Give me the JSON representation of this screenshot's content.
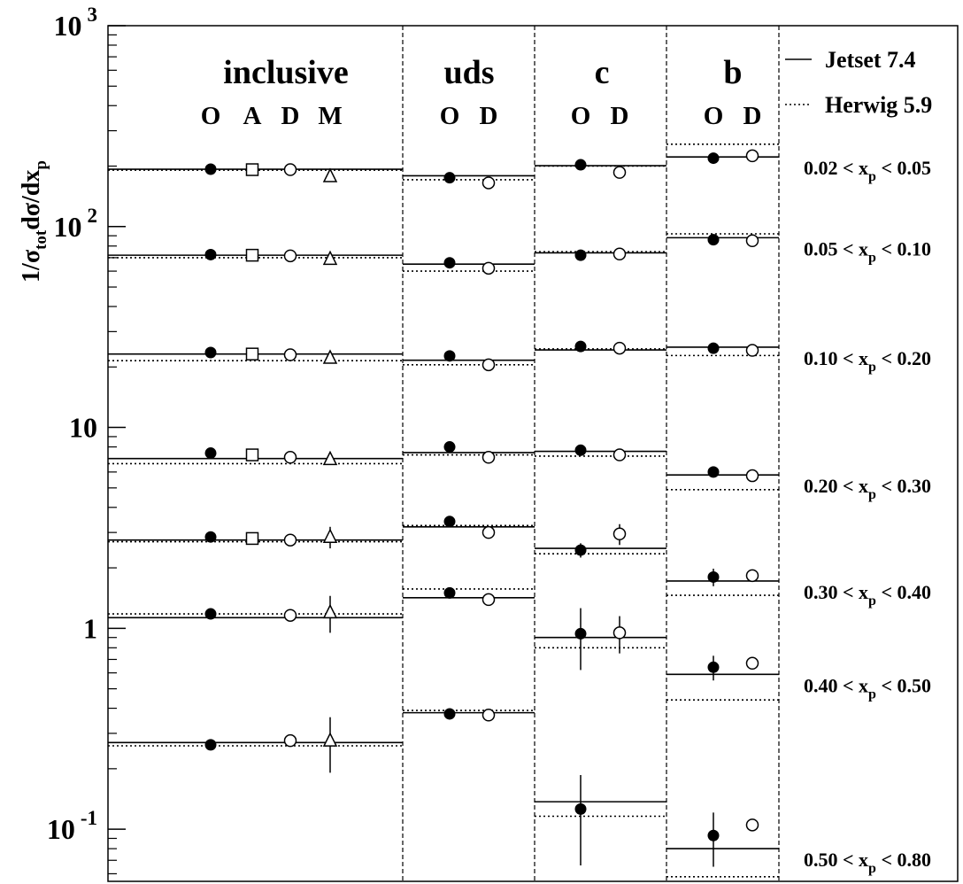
{
  "chart_data": {
    "type": "scatter",
    "yscale": "log",
    "ylim": [
      0.055,
      1000
    ],
    "y_axis": {
      "label_base": "1/σ",
      "label_sub1": "tot",
      "label_mid": "dσ/dx",
      "label_sub2": "p",
      "major_ticks": [
        {
          "value": 1000,
          "base": "10",
          "exp": "3"
        },
        {
          "value": 100,
          "base": "10",
          "exp": "2"
        },
        {
          "value": 10,
          "base": "10",
          "exp": ""
        },
        {
          "value": 1,
          "base": "1",
          "exp": ""
        },
        {
          "value": 0.1,
          "base": "10",
          "exp": "-1"
        }
      ]
    },
    "panels": [
      {
        "label": "inclusive",
        "experiments": [
          "O",
          "A",
          "D",
          "M"
        ]
      },
      {
        "label": "uds",
        "experiments": [
          "O",
          "D"
        ]
      },
      {
        "label": "c",
        "experiments": [
          "O",
          "D"
        ]
      },
      {
        "label": "b",
        "experiments": [
          "O",
          "D"
        ]
      }
    ],
    "legend": {
      "position": "top-right",
      "entries": [
        {
          "label": "Jetset 7.4",
          "style": "solid"
        },
        {
          "label": "Herwig 5.9",
          "style": "dotted"
        }
      ]
    },
    "bins": [
      {
        "label_pre": "0.02 < x",
        "label_sub": "p",
        "label_post": " < 0.05"
      },
      {
        "label_pre": "0.05 < x",
        "label_sub": "p",
        "label_post": " < 0.10"
      },
      {
        "label_pre": "0.10 < x",
        "label_sub": "p",
        "label_post": " < 0.20"
      },
      {
        "label_pre": "0.20 < x",
        "label_sub": "p",
        "label_post": " < 0.30"
      },
      {
        "label_pre": "0.30 < x",
        "label_sub": "p",
        "label_post": " < 0.40"
      },
      {
        "label_pre": "0.40 < x",
        "label_sub": "p",
        "label_post": " < 0.50"
      },
      {
        "label_pre": "0.50 < x",
        "label_sub": "p",
        "label_post": " < 0.80"
      }
    ],
    "jetset": [
      [
        193,
        179,
        201,
        222
      ],
      [
        72,
        65,
        74,
        88
      ],
      [
        23.2,
        21.6,
        24.3,
        25.1
      ],
      [
        7.0,
        7.5,
        7.6,
        5.8
      ],
      [
        2.75,
        3.2,
        2.5,
        1.72
      ],
      [
        1.13,
        1.42,
        0.9,
        0.59
      ],
      [
        0.27,
        0.38,
        0.137,
        0.08
      ]
    ],
    "herwig": [
      [
        191,
        171,
        200,
        257
      ],
      [
        70,
        60,
        75,
        92
      ],
      [
        21.5,
        20.5,
        24.6,
        22.8
      ],
      [
        6.6,
        7.3,
        7.2,
        4.9
      ],
      [
        2.7,
        3.25,
        2.35,
        1.46
      ],
      [
        1.18,
        1.57,
        0.8,
        0.44
      ],
      [
        0.26,
        0.39,
        0.116,
        0.058
      ]
    ],
    "points": [
      {
        "bin": 0,
        "panel": 0,
        "exp": "O",
        "value": 193,
        "err": 0
      },
      {
        "bin": 0,
        "panel": 0,
        "exp": "A",
        "value": 192,
        "err": 0
      },
      {
        "bin": 0,
        "panel": 0,
        "exp": "D",
        "value": 192,
        "err": 0
      },
      {
        "bin": 0,
        "panel": 0,
        "exp": "M",
        "value": 178,
        "err": 0
      },
      {
        "bin": 0,
        "panel": 1,
        "exp": "O",
        "value": 175,
        "err": 0
      },
      {
        "bin": 0,
        "panel": 1,
        "exp": "D",
        "value": 165,
        "err": 0
      },
      {
        "bin": 0,
        "panel": 2,
        "exp": "O",
        "value": 203,
        "err": 0
      },
      {
        "bin": 0,
        "panel": 2,
        "exp": "D",
        "value": 186,
        "err": 0
      },
      {
        "bin": 0,
        "panel": 3,
        "exp": "O",
        "value": 219,
        "err": 0
      },
      {
        "bin": 0,
        "panel": 3,
        "exp": "D",
        "value": 225,
        "err": 0
      },
      {
        "bin": 1,
        "panel": 0,
        "exp": "O",
        "value": 72.5,
        "err": 0
      },
      {
        "bin": 1,
        "panel": 0,
        "exp": "A",
        "value": 72,
        "err": 0
      },
      {
        "bin": 1,
        "panel": 0,
        "exp": "D",
        "value": 71.5,
        "err": 0
      },
      {
        "bin": 1,
        "panel": 0,
        "exp": "M",
        "value": 69,
        "err": 0
      },
      {
        "bin": 1,
        "panel": 1,
        "exp": "O",
        "value": 66,
        "err": 0
      },
      {
        "bin": 1,
        "panel": 1,
        "exp": "D",
        "value": 62,
        "err": 0
      },
      {
        "bin": 1,
        "panel": 2,
        "exp": "O",
        "value": 72,
        "err": 0
      },
      {
        "bin": 1,
        "panel": 2,
        "exp": "D",
        "value": 73,
        "err": 0
      },
      {
        "bin": 1,
        "panel": 3,
        "exp": "O",
        "value": 86,
        "err": 0
      },
      {
        "bin": 1,
        "panel": 3,
        "exp": "D",
        "value": 85,
        "err": 0
      },
      {
        "bin": 2,
        "panel": 0,
        "exp": "O",
        "value": 23.6,
        "err": 0
      },
      {
        "bin": 2,
        "panel": 0,
        "exp": "A",
        "value": 23.2,
        "err": 0
      },
      {
        "bin": 2,
        "panel": 0,
        "exp": "D",
        "value": 23.0,
        "err": 0
      },
      {
        "bin": 2,
        "panel": 0,
        "exp": "M",
        "value": 22.2,
        "err": 0
      },
      {
        "bin": 2,
        "panel": 1,
        "exp": "O",
        "value": 22.7,
        "err": 0
      },
      {
        "bin": 2,
        "panel": 1,
        "exp": "D",
        "value": 20.5,
        "err": 0
      },
      {
        "bin": 2,
        "panel": 2,
        "exp": "O",
        "value": 25.3,
        "err": 0
      },
      {
        "bin": 2,
        "panel": 2,
        "exp": "D",
        "value": 24.8,
        "err": 0
      },
      {
        "bin": 2,
        "panel": 3,
        "exp": "O",
        "value": 24.8,
        "err": 0
      },
      {
        "bin": 2,
        "panel": 3,
        "exp": "D",
        "value": 24.2,
        "err": 0
      },
      {
        "bin": 3,
        "panel": 0,
        "exp": "O",
        "value": 7.45,
        "err": 0
      },
      {
        "bin": 3,
        "panel": 0,
        "exp": "A",
        "value": 7.3,
        "err": 0
      },
      {
        "bin": 3,
        "panel": 0,
        "exp": "D",
        "value": 7.1,
        "err": 0
      },
      {
        "bin": 3,
        "panel": 0,
        "exp": "M",
        "value": 6.95,
        "err": 0
      },
      {
        "bin": 3,
        "panel": 1,
        "exp": "O",
        "value": 8.0,
        "err": 0
      },
      {
        "bin": 3,
        "panel": 1,
        "exp": "D",
        "value": 7.1,
        "err": 0
      },
      {
        "bin": 3,
        "panel": 2,
        "exp": "O",
        "value": 7.7,
        "err": 0.3
      },
      {
        "bin": 3,
        "panel": 2,
        "exp": "D",
        "value": 7.3,
        "err": 0
      },
      {
        "bin": 3,
        "panel": 3,
        "exp": "O",
        "value": 6.0,
        "err": 0
      },
      {
        "bin": 3,
        "panel": 3,
        "exp": "D",
        "value": 5.75,
        "err": 0
      },
      {
        "bin": 4,
        "panel": 0,
        "exp": "O",
        "value": 2.85,
        "err": 0
      },
      {
        "bin": 4,
        "panel": 0,
        "exp": "A",
        "value": 2.8,
        "err": 0
      },
      {
        "bin": 4,
        "panel": 0,
        "exp": "D",
        "value": 2.75,
        "err": 0
      },
      {
        "bin": 4,
        "panel": 0,
        "exp": "M",
        "value": 2.85,
        "err": 0.35
      },
      {
        "bin": 4,
        "panel": 1,
        "exp": "O",
        "value": 3.4,
        "err": 0
      },
      {
        "bin": 4,
        "panel": 1,
        "exp": "D",
        "value": 3.0,
        "err": 0
      },
      {
        "bin": 4,
        "panel": 2,
        "exp": "O",
        "value": 2.45,
        "err": 0.2
      },
      {
        "bin": 4,
        "panel": 2,
        "exp": "D",
        "value": 2.95,
        "err": 0.35
      },
      {
        "bin": 4,
        "panel": 3,
        "exp": "O",
        "value": 1.8,
        "err": 0.18
      },
      {
        "bin": 4,
        "panel": 3,
        "exp": "D",
        "value": 1.83,
        "err": 0
      },
      {
        "bin": 5,
        "panel": 0,
        "exp": "O",
        "value": 1.18,
        "err": 0
      },
      {
        "bin": 5,
        "panel": 0,
        "exp": "D",
        "value": 1.16,
        "err": 0
      },
      {
        "bin": 5,
        "panel": 0,
        "exp": "M",
        "value": 1.2,
        "err": 0.25
      },
      {
        "bin": 5,
        "panel": 1,
        "exp": "O",
        "value": 1.5,
        "err": 0
      },
      {
        "bin": 5,
        "panel": 1,
        "exp": "D",
        "value": 1.39,
        "err": 0
      },
      {
        "bin": 5,
        "panel": 2,
        "exp": "O",
        "value": 0.94,
        "err": 0.32
      },
      {
        "bin": 5,
        "panel": 2,
        "exp": "D",
        "value": 0.95,
        "err": 0.2
      },
      {
        "bin": 5,
        "panel": 3,
        "exp": "O",
        "value": 0.64,
        "err": 0.09
      },
      {
        "bin": 5,
        "panel": 3,
        "exp": "D",
        "value": 0.67,
        "err": 0
      },
      {
        "bin": 6,
        "panel": 0,
        "exp": "O",
        "value": 0.263,
        "err": 0
      },
      {
        "bin": 6,
        "panel": 0,
        "exp": "D",
        "value": 0.276,
        "err": 0
      },
      {
        "bin": 6,
        "panel": 0,
        "exp": "M",
        "value": 0.276,
        "err": 0.085
      },
      {
        "bin": 6,
        "panel": 1,
        "exp": "O",
        "value": 0.375,
        "err": 0
      },
      {
        "bin": 6,
        "panel": 1,
        "exp": "D",
        "value": 0.37,
        "err": 0
      },
      {
        "bin": 6,
        "panel": 2,
        "exp": "O",
        "value": 0.126,
        "err": 0.06
      },
      {
        "bin": 6,
        "panel": 3,
        "exp": "O",
        "value": 0.093,
        "err": 0.028
      },
      {
        "bin": 6,
        "panel": 3,
        "exp": "D",
        "value": 0.105,
        "err": 0
      }
    ]
  }
}
